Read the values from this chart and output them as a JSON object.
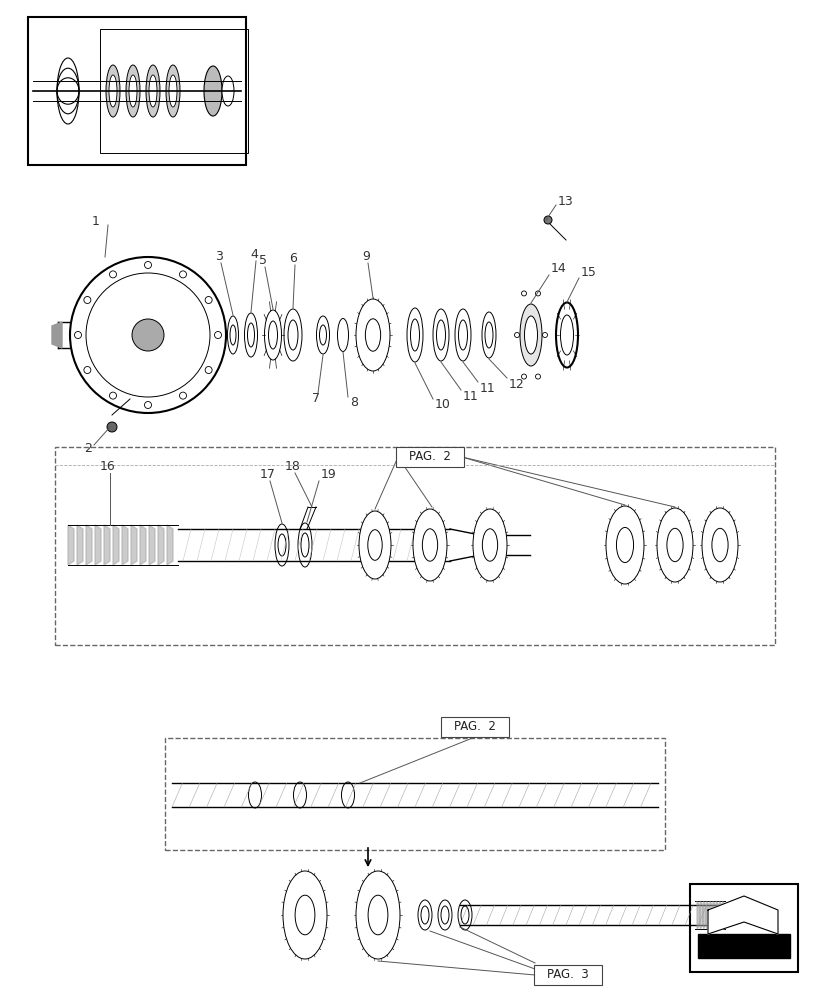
{
  "bg_color": "#ffffff",
  "line_color": "#000000",
  "page_width": 8.28,
  "page_height": 10.0,
  "part_numbers_top": [
    "1",
    "2",
    "3",
    "4",
    "5",
    "6",
    "7",
    "8",
    "9",
    "10",
    "11",
    "11",
    "12",
    "13",
    "14",
    "15"
  ],
  "part_numbers_mid": [
    "16",
    "17",
    "18",
    "19"
  ],
  "pag2_text": "PAG.  2",
  "pag3_text": "PAG.  3"
}
